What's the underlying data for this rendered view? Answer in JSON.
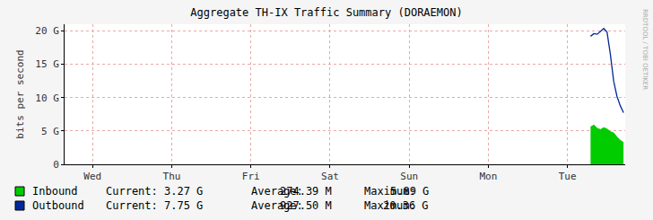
{
  "chart_data": {
    "type": "line",
    "title": "Aggregate TH-IX Traffic Summary (DORAEMON)",
    "y_label": "bits per second",
    "annotations": [
      "RRDTOOL / TOBI OETIKER"
    ],
    "grid": true,
    "ylim": [
      0,
      21
    ],
    "yticks": [
      0,
      {
        "value": 5,
        "label": "5 G"
      },
      {
        "value": 10,
        "label": "10 G"
      },
      {
        "value": 15,
        "label": "15 G"
      },
      {
        "value": 20,
        "label": "20 G"
      }
    ],
    "categories": [
      null,
      null,
      null,
      null,
      null,
      null,
      null,
      null,
      "Wed",
      null,
      null,
      null,
      null,
      null,
      null,
      null,
      null,
      null,
      null,
      null,
      null,
      null,
      null,
      null,
      null,
      null,
      null,
      null,
      null,
      null,
      null,
      null,
      "Thu",
      null,
      null,
      null,
      null,
      null,
      null,
      null,
      null,
      null,
      null,
      null,
      null,
      null,
      null,
      null,
      null,
      null,
      null,
      null,
      null,
      null,
      null,
      null,
      "Fri",
      null,
      null,
      null,
      null,
      null,
      null,
      null,
      null,
      null,
      null,
      null,
      null,
      null,
      null,
      null,
      null,
      null,
      null,
      null,
      null,
      null,
      null,
      null,
      "Sat",
      null,
      null,
      null,
      null,
      null,
      null,
      null,
      null,
      null,
      null,
      null,
      null,
      null,
      null,
      null,
      null,
      null,
      null,
      null,
      null,
      null,
      null,
      null,
      "Sun",
      null,
      null,
      null,
      null,
      null,
      null,
      null,
      null,
      null,
      null,
      null,
      null,
      null,
      null,
      null,
      null,
      null,
      null,
      null,
      null,
      null,
      null,
      null,
      "Mon",
      null,
      null,
      null,
      null,
      null,
      null,
      null,
      null,
      null,
      null,
      null,
      null,
      null,
      null,
      null,
      null,
      null,
      null,
      null,
      null,
      null,
      null,
      null,
      "Tue",
      null,
      null,
      null,
      null,
      null,
      null,
      null,
      null,
      null,
      null,
      null,
      null,
      null,
      null,
      null,
      null,
      null
    ],
    "series": [
      {
        "name": "Inbound",
        "type": "area",
        "color": "#00cc00",
        "stats": [
          {
            "name": "Current:",
            "value": 3.27,
            "label": "3.27 G"
          },
          {
            "name": "Average:",
            "value": 0.27439,
            "label": "274.39 M"
          },
          {
            "name": "Maximum:",
            "value": 5.89,
            "label": "5.89 G"
          }
        ],
        "values": [
          null,
          null,
          null,
          null,
          null,
          null,
          null,
          null,
          null,
          null,
          null,
          null,
          null,
          null,
          null,
          null,
          null,
          null,
          null,
          null,
          null,
          null,
          null,
          null,
          null,
          null,
          null,
          null,
          null,
          null,
          null,
          null,
          null,
          null,
          null,
          null,
          null,
          null,
          null,
          null,
          null,
          null,
          null,
          null,
          null,
          null,
          null,
          null,
          null,
          null,
          null,
          null,
          null,
          null,
          null,
          null,
          null,
          null,
          null,
          null,
          null,
          null,
          null,
          null,
          null,
          null,
          null,
          null,
          null,
          null,
          null,
          null,
          null,
          null,
          null,
          null,
          null,
          null,
          null,
          null,
          null,
          null,
          null,
          null,
          null,
          null,
          null,
          null,
          null,
          null,
          null,
          null,
          null,
          null,
          null,
          null,
          null,
          null,
          null,
          null,
          null,
          null,
          null,
          null,
          null,
          null,
          null,
          null,
          null,
          null,
          null,
          null,
          null,
          null,
          null,
          null,
          null,
          null,
          null,
          null,
          null,
          null,
          null,
          null,
          null,
          null,
          null,
          null,
          null,
          null,
          null,
          null,
          null,
          null,
          null,
          null,
          null,
          null,
          null,
          null,
          null,
          null,
          null,
          null,
          null,
          null,
          null,
          null,
          null,
          null,
          null,
          null,
          null,
          null,
          null,
          null,
          null,
          null,
          null,
          5.6,
          5.89,
          5.4,
          5.2,
          5.5,
          5.3,
          4.9,
          4.7,
          4.1,
          3.6,
          3.27
        ]
      },
      {
        "name": "Outbound",
        "type": "line",
        "color": "#002a97",
        "stats": [
          {
            "name": "Current:",
            "value": 7.75,
            "label": "7.75 G"
          },
          {
            "name": "Average:",
            "value": 0.9275,
            "label": "927.50 M"
          },
          {
            "name": "Maximum:",
            "value": 20.36,
            "label": "20.36 G"
          }
        ],
        "values": [
          null,
          null,
          null,
          null,
          null,
          null,
          null,
          null,
          null,
          null,
          null,
          null,
          null,
          null,
          null,
          null,
          null,
          null,
          null,
          null,
          null,
          null,
          null,
          null,
          null,
          null,
          null,
          null,
          null,
          null,
          null,
          null,
          null,
          null,
          null,
          null,
          null,
          null,
          null,
          null,
          null,
          null,
          null,
          null,
          null,
          null,
          null,
          null,
          null,
          null,
          null,
          null,
          null,
          null,
          null,
          null,
          null,
          null,
          null,
          null,
          null,
          null,
          null,
          null,
          null,
          null,
          null,
          null,
          null,
          null,
          null,
          null,
          null,
          null,
          null,
          null,
          null,
          null,
          null,
          null,
          null,
          null,
          null,
          null,
          null,
          null,
          null,
          null,
          null,
          null,
          null,
          null,
          null,
          null,
          null,
          null,
          null,
          null,
          null,
          null,
          null,
          null,
          null,
          null,
          null,
          null,
          null,
          null,
          null,
          null,
          null,
          null,
          null,
          null,
          null,
          null,
          null,
          null,
          null,
          null,
          null,
          null,
          null,
          null,
          null,
          null,
          null,
          null,
          null,
          null,
          null,
          null,
          null,
          null,
          null,
          null,
          null,
          null,
          null,
          null,
          null,
          null,
          null,
          null,
          null,
          null,
          null,
          null,
          null,
          null,
          null,
          null,
          null,
          null,
          null,
          null,
          null,
          null,
          null,
          19.2,
          19.6,
          19.5,
          20.0,
          20.36,
          19.8,
          16.5,
          12.5,
          10.2,
          8.8,
          7.75
        ]
      }
    ]
  }
}
